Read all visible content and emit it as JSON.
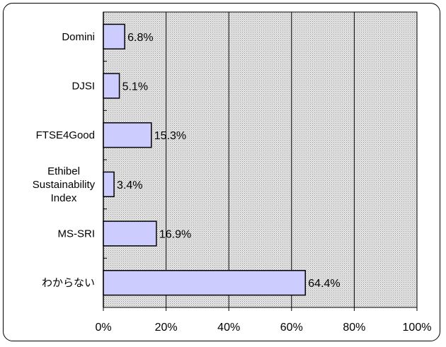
{
  "chart_data": {
    "type": "bar",
    "orientation": "horizontal",
    "title": "",
    "xlabel": "",
    "ylabel": "",
    "categories": [
      [
        "Domini"
      ],
      [
        "DJSI"
      ],
      [
        "FTSE4Good"
      ],
      [
        "Ethibel",
        "Sustainability",
        "Index"
      ],
      [
        "MS-SRI"
      ],
      [
        "わからない"
      ]
    ],
    "values": [
      6.8,
      5.1,
      15.3,
      3.4,
      16.9,
      64.4
    ],
    "value_labels": [
      "6.8%",
      "5.1%",
      "15.3%",
      "3.4%",
      "16.9%",
      "64.4%"
    ],
    "xlim": [
      0,
      100
    ],
    "x_ticks": [
      0,
      20,
      40,
      60,
      80,
      100
    ],
    "x_tick_labels": [
      "0%",
      "20%",
      "40%",
      "60%",
      "80%",
      "100%"
    ],
    "grid": "vertical",
    "bar_color": "#ccccff",
    "plot_background": "#d4d4d4",
    "legend": "none"
  }
}
